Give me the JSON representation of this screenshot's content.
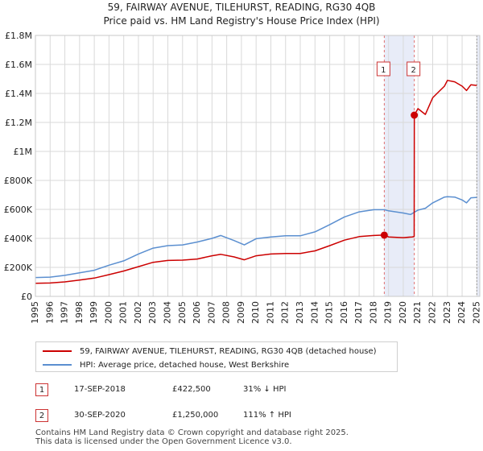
{
  "chart_data": {
    "type": "line",
    "title": "59, FAIRWAY AVENUE, TILEHURST, READING, RG30 4QB",
    "subtitle": "Price paid vs. HM Land Registry's House Price Index (HPI)",
    "xlabel": "",
    "ylabel": "",
    "xlim": [
      1995.0,
      2025.2
    ],
    "ylim": [
      0,
      1800000
    ],
    "grid": true,
    "y_ticks": [
      {
        "value": 0,
        "label": "£0"
      },
      {
        "value": 200000,
        "label": "£200K"
      },
      {
        "value": 400000,
        "label": "£400K"
      },
      {
        "value": 600000,
        "label": "£600K"
      },
      {
        "value": 800000,
        "label": "£800K"
      },
      {
        "value": 1000000,
        "label": "£1M"
      },
      {
        "value": 1200000,
        "label": "£1.2M"
      },
      {
        "value": 1400000,
        "label": "£1.4M"
      },
      {
        "value": 1600000,
        "label": "£1.6M"
      },
      {
        "value": 1800000,
        "label": "£1.8M"
      }
    ],
    "x_ticks": [
      "1995",
      "1996",
      "1997",
      "1998",
      "1999",
      "2000",
      "2001",
      "2002",
      "2003",
      "2004",
      "2005",
      "2006",
      "2007",
      "2008",
      "2009",
      "2010",
      "2011",
      "2012",
      "2013",
      "2014",
      "2015",
      "2016",
      "2017",
      "2018",
      "2019",
      "2020",
      "2021",
      "2022",
      "2023",
      "2024",
      "2025"
    ],
    "series": [
      {
        "name": "59, FAIRWAY AVENUE, TILEHURST, READING, RG30 4QB (detached house)",
        "color": "#cc0000",
        "x": [
          1995.0,
          1996.0,
          1997.0,
          1998.0,
          1999.0,
          2000.0,
          2001.0,
          2002.0,
          2003.0,
          2004.0,
          2005.0,
          2006.0,
          2007.0,
          2007.6,
          2008.5,
          2009.2,
          2010.0,
          2011.0,
          2012.0,
          2013.0,
          2014.0,
          2015.0,
          2016.0,
          2017.0,
          2018.0,
          2018.71,
          2019.0,
          2020.0,
          2020.6,
          2020.74,
          2020.75,
          2021.0,
          2021.5,
          2022.0,
          2022.5,
          2022.8,
          2023.0,
          2023.5,
          2024.0,
          2024.3,
          2024.6,
          2025.0
        ],
        "y": [
          90000,
          92000,
          100000,
          112000,
          126000,
          150000,
          175000,
          205000,
          235000,
          248000,
          250000,
          258000,
          280000,
          290000,
          272000,
          252000,
          280000,
          292000,
          296000,
          296000,
          314000,
          350000,
          388000,
          412000,
          420000,
          422500,
          410000,
          405000,
          410000,
          412000,
          1250000,
          1295000,
          1255000,
          1370000,
          1420000,
          1450000,
          1490000,
          1480000,
          1450000,
          1420000,
          1460000,
          1455000
        ]
      },
      {
        "name": "HPI: Average price, detached house, West Berkshire",
        "color": "#5b8fd0",
        "x": [
          1995.0,
          1996.0,
          1997.0,
          1998.0,
          1999.0,
          2000.0,
          2001.0,
          2002.0,
          2003.0,
          2004.0,
          2005.0,
          2006.0,
          2007.0,
          2007.6,
          2008.5,
          2009.2,
          2010.0,
          2011.0,
          2012.0,
          2013.0,
          2014.0,
          2015.0,
          2016.0,
          2017.0,
          2018.0,
          2018.71,
          2019.0,
          2020.0,
          2020.5,
          2021.0,
          2021.5,
          2022.0,
          2022.5,
          2022.8,
          2023.0,
          2023.5,
          2024.0,
          2024.3,
          2024.6,
          2025.0
        ],
        "y": [
          130000,
          133000,
          145000,
          163000,
          180000,
          215000,
          245000,
          292000,
          333000,
          350000,
          355000,
          375000,
          400000,
          420000,
          385000,
          355000,
          398000,
          410000,
          418000,
          418000,
          445000,
          495000,
          548000,
          583000,
          598000,
          598000,
          590000,
          575000,
          565000,
          595000,
          608000,
          645000,
          670000,
          685000,
          688000,
          685000,
          665000,
          645000,
          680000,
          683000
        ]
      }
    ],
    "markers": [
      {
        "id": "1",
        "x": 2018.71,
        "y": 422500,
        "date": "17-SEP-2018",
        "price": "£422,500",
        "hpi": "31% ↓ HPI"
      },
      {
        "id": "2",
        "x": 2020.75,
        "y": 1250000,
        "date": "30-SEP-2020",
        "price": "£1,250,000",
        "hpi": "111% ↑ HPI"
      }
    ],
    "highlight_ranges": [
      [
        2018.71,
        2020.75
      ],
      [
        2025.0,
        2025.2
      ]
    ]
  },
  "legend": {
    "house_label": "59, FAIRWAY AVENUE, TILEHURST, READING, RG30 4QB (detached house)",
    "hpi_label": "HPI: Average price, detached house, West Berkshire"
  },
  "footer": {
    "line1": "Contains HM Land Registry data © Crown copyright and database right 2025.",
    "line2": "This data is licensed under the Open Government Licence v3.0."
  }
}
